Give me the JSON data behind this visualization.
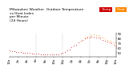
{
  "title_line1": "Milwaukee Weather  Outdoor Temperature",
  "title_line2": "vs Heat Index",
  "title_line3": "per Minute",
  "title_line4": "(24 Hours)",
  "legend_temp": "Temp",
  "legend_heat": "Heat",
  "temp_color": "#cc0000",
  "heat_color": "#ff8800",
  "background_color": "#ffffff",
  "ylim": [
    43,
    92
  ],
  "yticks": [
    50,
    60,
    70,
    80,
    90
  ],
  "temp_x": [
    0,
    30,
    60,
    90,
    120,
    150,
    180,
    210,
    240,
    270,
    300,
    330,
    360,
    390,
    420,
    450,
    480,
    510,
    540,
    570,
    600,
    630,
    660,
    690,
    720,
    750,
    780,
    810,
    840,
    870,
    900,
    930,
    960,
    990,
    1020,
    1050,
    1080,
    1110,
    1140,
    1170,
    1200,
    1230,
    1260,
    1290,
    1320,
    1350,
    1380,
    1410,
    1440
  ],
  "temp_y": [
    55,
    54,
    54,
    53,
    53,
    52,
    51,
    51,
    50,
    50,
    49,
    49,
    49,
    49,
    48,
    48,
    48,
    48,
    47,
    47,
    47,
    47,
    48,
    49,
    50,
    52,
    55,
    58,
    62,
    65,
    68,
    72,
    75,
    78,
    80,
    82,
    83,
    84,
    84,
    83,
    82,
    80,
    78,
    76,
    74,
    72,
    70,
    68,
    66
  ],
  "heat_y": [
    null,
    null,
    null,
    null,
    null,
    null,
    null,
    null,
    null,
    null,
    null,
    null,
    null,
    null,
    null,
    null,
    null,
    null,
    null,
    null,
    null,
    null,
    null,
    null,
    null,
    null,
    null,
    null,
    null,
    null,
    null,
    null,
    null,
    null,
    82,
    84,
    86,
    88,
    89,
    88,
    87,
    84,
    82,
    80,
    78,
    76,
    74,
    72,
    70
  ],
  "xlim": [
    0,
    1440
  ],
  "xtick_positions": [
    0,
    120,
    240,
    360,
    480,
    600,
    720,
    840,
    960,
    1080,
    1200,
    1320,
    1440
  ],
  "xtick_labels": [
    "12a",
    "2a",
    "4a",
    "6a",
    "8a",
    "10a",
    "12p",
    "2p",
    "4p",
    "6p",
    "8p",
    "10p",
    "12a"
  ],
  "vline_positions": [
    360,
    720,
    1080
  ],
  "title_fontsize": 3.2,
  "tick_fontsize": 2.8,
  "legend_fontsize": 3.0
}
